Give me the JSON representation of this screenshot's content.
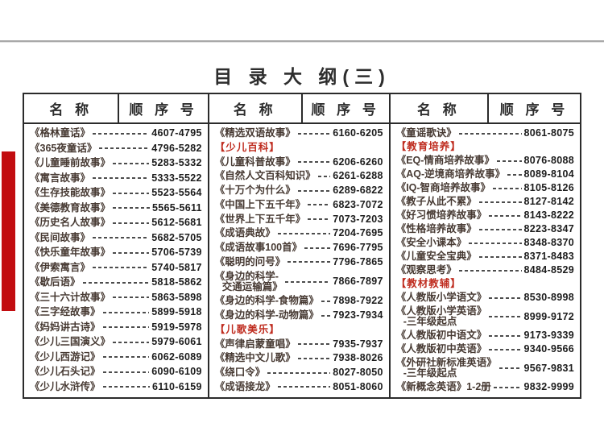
{
  "page": {
    "title": "目 录 大 纲(三)"
  },
  "table": {
    "name_header": "名 称",
    "number_header": "顺 序 号",
    "columns": [
      {
        "entries": [
          {
            "type": "item",
            "title": "《格林童话》",
            "num": "4607-4795"
          },
          {
            "type": "item",
            "title": "《365夜童话》",
            "num": "4796-5282"
          },
          {
            "type": "item",
            "title": "《儿童睡前故事》",
            "num": "5283-5332"
          },
          {
            "type": "item",
            "title": "《寓言故事》",
            "num": "5333-5522"
          },
          {
            "type": "item",
            "title": "《生存技能故事》",
            "num": "5523-5564"
          },
          {
            "type": "item",
            "title": "《美德教育故事》",
            "num": "5565-5611"
          },
          {
            "type": "item",
            "title": "《历史名人故事》",
            "num": "5612-5681"
          },
          {
            "type": "item",
            "title": "《民间故事》",
            "num": "5682-5705"
          },
          {
            "type": "item",
            "title": "《快乐童年故事》",
            "num": "5706-5739"
          },
          {
            "type": "item",
            "title": "《伊索寓言》",
            "num": "5740-5817"
          },
          {
            "type": "item",
            "title": "《歇后语》",
            "num": "5818-5862"
          },
          {
            "type": "item",
            "title": "《三十六计故事》",
            "num": "5863-5898"
          },
          {
            "type": "item",
            "title": "《三字经故事》",
            "num": "5899-5918"
          },
          {
            "type": "item",
            "title": "《妈妈讲古诗》",
            "num": "5919-5978"
          },
          {
            "type": "item",
            "title": "《少儿三国演义》",
            "num": "5979-6061"
          },
          {
            "type": "item",
            "title": "《少儿西游记》",
            "num": "6062-6089"
          },
          {
            "type": "item",
            "title": "《少儿石头记》",
            "num": "6090-6109"
          },
          {
            "type": "item",
            "title": "《少儿水浒传》",
            "num": "6110-6159"
          }
        ]
      },
      {
        "entries": [
          {
            "type": "item",
            "title": "《精选双语故事》",
            "num": "6160-6205"
          },
          {
            "type": "category",
            "title": "【少儿百科】"
          },
          {
            "type": "item",
            "title": "《儿童科普故事》",
            "num": "6206-6260"
          },
          {
            "type": "item",
            "title": "《自然人文百科知识》",
            "num": "6261-6288"
          },
          {
            "type": "item",
            "title": "《十万个为什么》",
            "num": "6289-6822"
          },
          {
            "type": "item",
            "title": "《中国上下五千年》",
            "num": "6823-7072"
          },
          {
            "type": "item",
            "title": "《世界上下五千年》",
            "num": "7073-7203"
          },
          {
            "type": "item",
            "title": "《成语典故》",
            "num": "7204-7695"
          },
          {
            "type": "item",
            "title": "《成语故事100首》",
            "num": "7696-7795"
          },
          {
            "type": "item",
            "title": "《聪明的问号》",
            "num": "7796-7865"
          },
          {
            "type": "item",
            "title": "《身边的科学-",
            "title2": "交通运输篇》",
            "num": "7866-7897"
          },
          {
            "type": "item",
            "title": "《身边的科学-食物篇》",
            "num": "7898-7922"
          },
          {
            "type": "item",
            "title": "《身边的科学-动物篇》",
            "num": "7923-7934"
          },
          {
            "type": "category",
            "title": "【儿歌美乐】"
          },
          {
            "type": "item",
            "title": "《声律启蒙童唱》",
            "num": "7935-7937"
          },
          {
            "type": "item",
            "title": "《精选中文儿歌》",
            "num": "7938-8026"
          },
          {
            "type": "item",
            "title": "《绕口令》",
            "num": "8027-8050"
          },
          {
            "type": "item",
            "title": "《成语接龙》",
            "num": "8051-8060"
          }
        ]
      },
      {
        "entries": [
          {
            "type": "item",
            "title": "《童谣歌诀》",
            "num": "8061-8075"
          },
          {
            "type": "category",
            "title": "【教育培养】"
          },
          {
            "type": "item",
            "title": "《EQ-情商培养故事》",
            "num": "8076-8088"
          },
          {
            "type": "item",
            "title": "《AQ-逆境商培养故事》",
            "num": "8089-8104"
          },
          {
            "type": "item",
            "title": "《IQ-智商培养故事》",
            "num": "8105-8126"
          },
          {
            "type": "item",
            "title": "《教子从此不累》",
            "num": "8127-8142"
          },
          {
            "type": "item",
            "title": "《好习惯培养故事》",
            "num": "8143-8222"
          },
          {
            "type": "item",
            "title": "《性格培养故事》",
            "num": "8223-8347"
          },
          {
            "type": "item",
            "title": "《安全小课本》",
            "num": "8348-8370"
          },
          {
            "type": "item",
            "title": "《儿童安全宝典》",
            "num": "8371-8483"
          },
          {
            "type": "item",
            "title": "《观察思考》",
            "num": "8484-8529"
          },
          {
            "type": "category",
            "title": "【教材教辅】"
          },
          {
            "type": "item",
            "title": "《人教版小学语文》",
            "num": "8530-8998"
          },
          {
            "type": "item",
            "title": "《人教版小学英语》",
            "title2": "-三年级起点",
            "num": "8999-9172"
          },
          {
            "type": "item",
            "title": "《人教版初中语文》",
            "num": "9173-9339"
          },
          {
            "type": "item",
            "title": "《人教版初中英语》",
            "num": "9340-9566"
          },
          {
            "type": "item",
            "title": "《外研社新标准英语》",
            "title2": "-三年级起点",
            "num": "9567-9831"
          },
          {
            "type": "item",
            "title": "《新概念英语》1-2册",
            "num": "9832-9999"
          }
        ]
      }
    ]
  },
  "colors": {
    "category_red": "#bf2c1f",
    "accent_bar_red": "#c20d10",
    "title_text": "#2d2d2d",
    "entry_title_text": "#473a33",
    "number_text": "#1c1c1c",
    "table_border": "#2b2b2b"
  }
}
